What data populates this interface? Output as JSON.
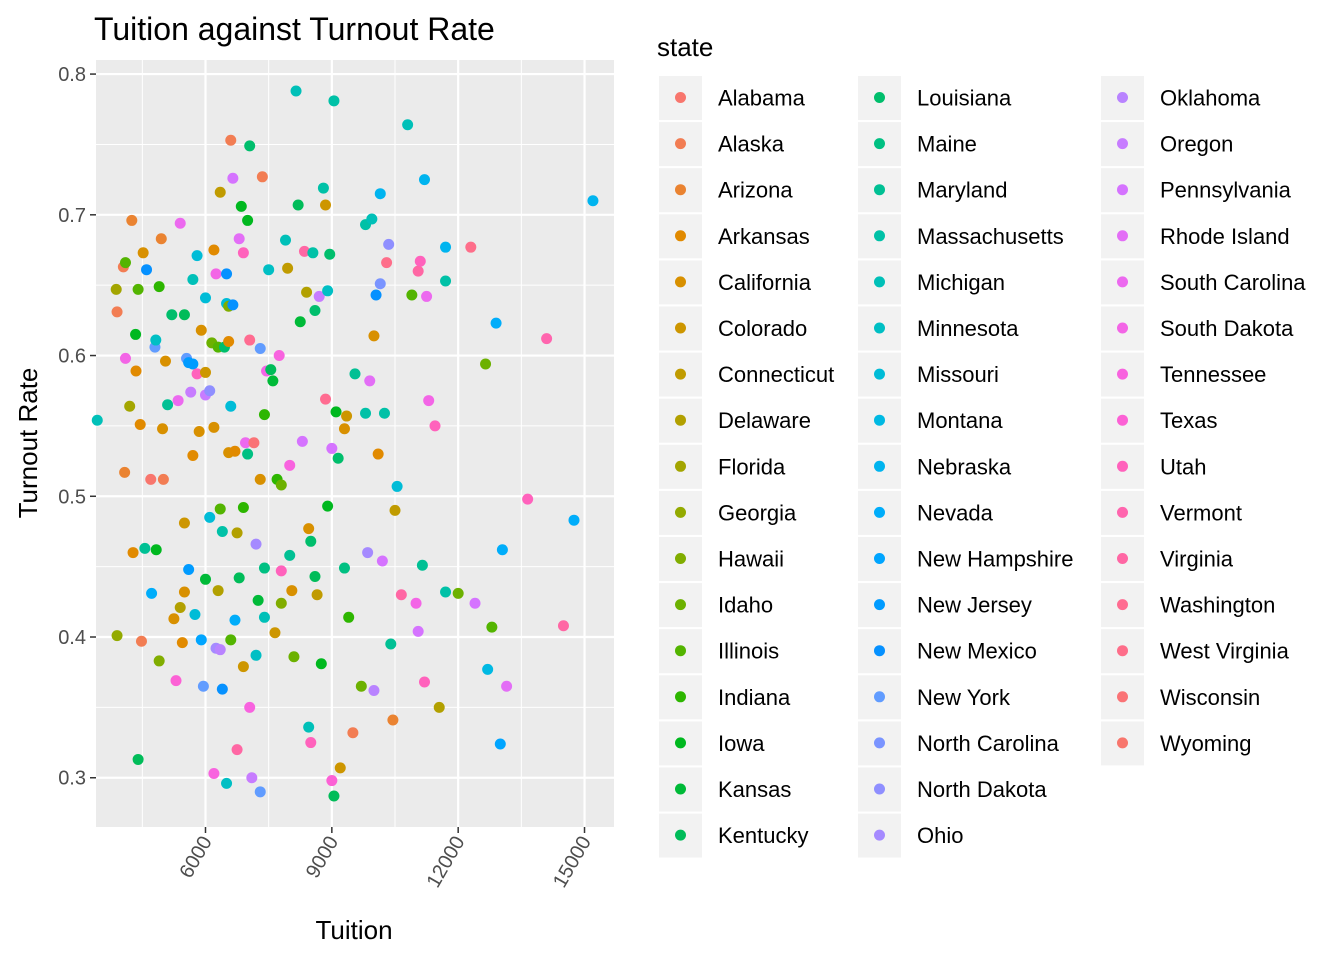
{
  "chart_data": {
    "type": "scatter",
    "title": "Tuition against Turnout Rate",
    "xlabel": "Tuition",
    "ylabel": "Turnout Rate",
    "xlim": [
      3400,
      15700
    ],
    "ylim": [
      0.265,
      0.81
    ],
    "xticks": [
      6000,
      9000,
      12000,
      15000
    ],
    "yticks": [
      0.3,
      0.4,
      0.5,
      0.6,
      0.7,
      0.8
    ],
    "x_tick_labels": [
      "6000",
      "9000",
      "12000",
      "15000"
    ],
    "y_tick_labels": [
      "0.3",
      "0.4",
      "0.5",
      "0.6",
      "0.7",
      "0.8"
    ],
    "grid": true,
    "legend_position": "right",
    "legend_title": "state",
    "states": [
      "Alabama",
      "Alaska",
      "Arizona",
      "Arkansas",
      "California",
      "Colorado",
      "Connecticut",
      "Delaware",
      "Florida",
      "Georgia",
      "Hawaii",
      "Idaho",
      "Illinois",
      "Indiana",
      "Iowa",
      "Kansas",
      "Kentucky",
      "Louisiana",
      "Maine",
      "Maryland",
      "Massachusetts",
      "Michigan",
      "Minnesota",
      "Missouri",
      "Montana",
      "Nebraska",
      "Nevada",
      "New Hampshire",
      "New Jersey",
      "New Mexico",
      "New York",
      "North Carolina",
      "North Dakota",
      "Ohio",
      "Oklahoma",
      "Oregon",
      "Pennsylvania",
      "Rhode Island",
      "South Carolina",
      "South Dakota",
      "Tennessee",
      "Texas",
      "Utah",
      "Vermont",
      "Virginia",
      "Washington",
      "West Virginia",
      "Wisconsin",
      "Wyoming"
    ],
    "colors": [
      "#F8766D",
      "#F27D53",
      "#EA8331",
      "#E18A00",
      "#D89000",
      "#CD9600",
      "#C09B00",
      "#B2A000",
      "#A3A500",
      "#93AA00",
      "#81AD00",
      "#6CB100",
      "#53B400",
      "#2DB600",
      "#00B81F",
      "#00BA38",
      "#00BC59",
      "#00BE6C",
      "#00C082",
      "#00C094",
      "#00C1A7",
      "#00C0B8",
      "#00BFC4",
      "#00BCD7",
      "#00B9E3",
      "#00B4EF",
      "#00ADFA",
      "#00A5FF",
      "#009BFF",
      "#0691FF",
      "#619CFF",
      "#7A94FF",
      "#8F8FFF",
      "#A58AFF",
      "#B983FF",
      "#C77CFF",
      "#D573FF",
      "#E36EF6",
      "#EC69EF",
      "#F365E6",
      "#F863DF",
      "#FC61D5",
      "#FF62BC",
      "#FF65AE",
      "#FF67A4",
      "#FF6C91",
      "#FE6E8A",
      "#FA7376",
      "#F8766D"
    ],
    "points": [
      [
        3430,
        0.554,
        21
      ],
      [
        3880,
        0.647,
        8
      ],
      [
        3900,
        0.631,
        1
      ],
      [
        3900,
        0.401,
        9
      ],
      [
        4050,
        0.663,
        1
      ],
      [
        4080,
        0.517,
        2
      ],
      [
        4100,
        0.666,
        12
      ],
      [
        4100,
        0.598,
        39
      ],
      [
        4200,
        0.564,
        8
      ],
      [
        4250,
        0.696,
        2
      ],
      [
        4280,
        0.46,
        3
      ],
      [
        4340,
        0.615,
        14
      ],
      [
        4400,
        0.647,
        12
      ],
      [
        4350,
        0.589,
        3
      ],
      [
        4450,
        0.551,
        3
      ],
      [
        4480,
        0.397,
        1
      ],
      [
        4560,
        0.463,
        19
      ],
      [
        4520,
        0.673,
        4
      ],
      [
        4600,
        0.661,
        29
      ],
      [
        4700,
        0.512,
        0
      ],
      [
        4720,
        0.431,
        26
      ],
      [
        4800,
        0.606,
        30
      ],
      [
        4820,
        0.611,
        22
      ],
      [
        4830,
        0.462,
        14
      ],
      [
        4900,
        0.649,
        13
      ],
      [
        4950,
        0.683,
        2
      ],
      [
        4980,
        0.548,
        4
      ],
      [
        5000,
        0.512,
        1
      ],
      [
        5050,
        0.596,
        4
      ],
      [
        5200,
        0.629,
        17
      ],
      [
        5100,
        0.565,
        19
      ],
      [
        5250,
        0.413,
        4
      ],
      [
        5300,
        0.369,
        41
      ],
      [
        5350,
        0.568,
        38
      ],
      [
        5400,
        0.421,
        7
      ],
      [
        5400,
        0.694,
        38
      ],
      [
        5450,
        0.396,
        3
      ],
      [
        5500,
        0.481,
        5
      ],
      [
        5500,
        0.629,
        16
      ],
      [
        5550,
        0.598,
        30
      ],
      [
        5600,
        0.595,
        28
      ],
      [
        5600,
        0.448,
        28
      ],
      [
        5650,
        0.574,
        35
      ],
      [
        5700,
        0.654,
        21
      ],
      [
        5700,
        0.529,
        3
      ],
      [
        5700,
        0.594,
        28
      ],
      [
        5750,
        0.416,
        23
      ],
      [
        5800,
        0.671,
        23
      ],
      [
        5800,
        0.587,
        42
      ],
      [
        5850,
        0.546,
        4
      ],
      [
        5900,
        0.618,
        4
      ],
      [
        5900,
        0.398,
        27
      ],
      [
        5950,
        0.365,
        30
      ],
      [
        6000,
        0.641,
        23
      ],
      [
        6000,
        0.572,
        35
      ],
      [
        6000,
        0.588,
        5
      ],
      [
        6100,
        0.575,
        32
      ],
      [
        6100,
        0.485,
        23
      ],
      [
        6150,
        0.609,
        11
      ],
      [
        6200,
        0.675,
        3
      ],
      [
        6200,
        0.549,
        4
      ],
      [
        6250,
        0.658,
        39
      ],
      [
        6300,
        0.606,
        12
      ],
      [
        6250,
        0.392,
        33
      ],
      [
        6300,
        0.433,
        7
      ],
      [
        6350,
        0.716,
        6
      ],
      [
        6350,
        0.391,
        34
      ],
      [
        6350,
        0.491,
        12
      ],
      [
        6400,
        0.475,
        20
      ],
      [
        6400,
        0.363,
        29
      ],
      [
        6450,
        0.606,
        17
      ],
      [
        6500,
        0.658,
        29
      ],
      [
        6500,
        0.637,
        23
      ],
      [
        6550,
        0.635,
        10
      ],
      [
        6550,
        0.61,
        3
      ],
      [
        6550,
        0.531,
        4
      ],
      [
        6600,
        0.753,
        1
      ],
      [
        6650,
        0.726,
        36
      ],
      [
        6600,
        0.398,
        12
      ],
      [
        6600,
        0.564,
        23
      ],
      [
        6650,
        0.636,
        29
      ],
      [
        6700,
        0.412,
        26
      ],
      [
        6700,
        0.532,
        3
      ],
      [
        6750,
        0.474,
        7
      ],
      [
        6750,
        0.32,
        44
      ],
      [
        6800,
        0.442,
        16
      ],
      [
        6800,
        0.683,
        37
      ],
      [
        6850,
        0.706,
        14
      ],
      [
        6900,
        0.492,
        13
      ],
      [
        6900,
        0.673,
        42
      ],
      [
        6950,
        0.538,
        38
      ],
      [
        7000,
        0.696,
        14
      ],
      [
        7000,
        0.53,
        18
      ],
      [
        7050,
        0.749,
        17
      ],
      [
        7050,
        0.611,
        45
      ],
      [
        7050,
        0.35,
        40
      ],
      [
        7100,
        0.3,
        35
      ],
      [
        7150,
        0.538,
        47
      ],
      [
        7200,
        0.466,
        33
      ],
      [
        7200,
        0.387,
        22
      ],
      [
        7250,
        0.426,
        15
      ],
      [
        7300,
        0.512,
        4
      ],
      [
        7300,
        0.605,
        30
      ],
      [
        7300,
        0.29,
        30
      ],
      [
        7350,
        0.727,
        1
      ],
      [
        7400,
        0.449,
        18
      ],
      [
        7400,
        0.558,
        13
      ],
      [
        7400,
        0.414,
        21
      ],
      [
        7450,
        0.589,
        39
      ],
      [
        7500,
        0.661,
        22
      ],
      [
        7550,
        0.59,
        16
      ],
      [
        7600,
        0.582,
        15
      ],
      [
        7650,
        0.403,
        5
      ],
      [
        7700,
        0.512,
        13
      ],
      [
        7750,
        0.6,
        40
      ],
      [
        7800,
        0.447,
        42
      ],
      [
        7800,
        0.508,
        11
      ],
      [
        7900,
        0.682,
        21
      ],
      [
        7950,
        0.662,
        6
      ],
      [
        8000,
        0.458,
        19
      ],
      [
        8000,
        0.522,
        40
      ],
      [
        8050,
        0.433,
        4
      ],
      [
        8100,
        0.386,
        11
      ],
      [
        8150,
        0.788,
        21
      ],
      [
        8200,
        0.707,
        16
      ],
      [
        8250,
        0.624,
        15
      ],
      [
        8300,
        0.539,
        36
      ],
      [
        8350,
        0.674,
        44
      ],
      [
        8400,
        0.645,
        7
      ],
      [
        8450,
        0.477,
        4
      ],
      [
        8450,
        0.336,
        21
      ],
      [
        8500,
        0.468,
        17
      ],
      [
        8550,
        0.673,
        20
      ],
      [
        8600,
        0.632,
        17
      ],
      [
        8650,
        0.43,
        6
      ],
      [
        8700,
        0.642,
        35
      ],
      [
        8750,
        0.381,
        14
      ],
      [
        8800,
        0.719,
        20
      ],
      [
        8850,
        0.707,
        5
      ],
      [
        8850,
        0.569,
        45
      ],
      [
        8900,
        0.646,
        22
      ],
      [
        8900,
        0.493,
        14
      ],
      [
        8950,
        0.672,
        17
      ],
      [
        9000,
        0.534,
        36
      ],
      [
        9050,
        0.781,
        20
      ],
      [
        9050,
        0.287,
        16
      ],
      [
        9100,
        0.56,
        14
      ],
      [
        9150,
        0.527,
        17
      ],
      [
        9200,
        0.307,
        5
      ],
      [
        9300,
        0.548,
        4
      ],
      [
        9350,
        0.557,
        5
      ],
      [
        9400,
        0.414,
        13
      ],
      [
        9500,
        0.332,
        1
      ],
      [
        9550,
        0.587,
        19
      ],
      [
        9700,
        0.365,
        11
      ],
      [
        9800,
        0.693,
        20
      ],
      [
        9800,
        0.559,
        20
      ],
      [
        9850,
        0.46,
        33
      ],
      [
        9900,
        0.582,
        37
      ],
      [
        9950,
        0.697,
        21
      ],
      [
        10000,
        0.614,
        4
      ],
      [
        10050,
        0.643,
        29
      ],
      [
        10100,
        0.53,
        3
      ],
      [
        10150,
        0.651,
        31
      ],
      [
        10150,
        0.715,
        25
      ],
      [
        10200,
        0.454,
        36
      ],
      [
        10250,
        0.559,
        20
      ],
      [
        10300,
        0.666,
        46
      ],
      [
        10350,
        0.679,
        32
      ],
      [
        10400,
        0.395,
        19
      ],
      [
        10450,
        0.341,
        2
      ],
      [
        10500,
        0.49,
        6
      ],
      [
        10550,
        0.507,
        23
      ],
      [
        10650,
        0.43,
        44
      ],
      [
        10800,
        0.764,
        21
      ],
      [
        10900,
        0.643,
        12
      ],
      [
        11000,
        0.424,
        39
      ],
      [
        11050,
        0.66,
        44
      ],
      [
        11050,
        0.404,
        36
      ],
      [
        11100,
        0.667,
        42
      ],
      [
        11150,
        0.451,
        19
      ],
      [
        11200,
        0.725,
        25
      ],
      [
        11250,
        0.642,
        38
      ],
      [
        11300,
        0.568,
        39
      ],
      [
        11450,
        0.55,
        42
      ],
      [
        11550,
        0.35,
        7
      ],
      [
        11700,
        0.432,
        20
      ],
      [
        11700,
        0.677,
        25
      ],
      [
        11700,
        0.653,
        20
      ],
      [
        12000,
        0.431,
        11
      ],
      [
        12300,
        0.677,
        46
      ],
      [
        12400,
        0.424,
        36
      ],
      [
        12650,
        0.594,
        11
      ],
      [
        12800,
        0.407,
        12
      ],
      [
        12900,
        0.623,
        26
      ],
      [
        13000,
        0.324,
        27
      ],
      [
        13050,
        0.462,
        26
      ],
      [
        13150,
        0.365,
        37
      ],
      [
        13650,
        0.498,
        42
      ],
      [
        14100,
        0.612,
        43
      ],
      [
        14500,
        0.408,
        44
      ],
      [
        14750,
        0.483,
        26
      ],
      [
        15200,
        0.71,
        25
      ],
      [
        5500,
        0.432,
        4
      ],
      [
        4900,
        0.383,
        10
      ],
      [
        6000,
        0.441,
        15
      ],
      [
        8500,
        0.325,
        42
      ],
      [
        9000,
        0.298,
        41
      ],
      [
        6200,
        0.303,
        40
      ],
      [
        6500,
        0.296,
        22
      ],
      [
        4400,
        0.313,
        16
      ],
      [
        10000,
        0.362,
        34
      ],
      [
        7800,
        0.424,
        10
      ],
      [
        8600,
        0.443,
        16
      ],
      [
        9300,
        0.449,
        18
      ],
      [
        6900,
        0.379,
        5
      ],
      [
        11200,
        0.368,
        42
      ],
      [
        12700,
        0.377,
        24
      ]
    ]
  }
}
